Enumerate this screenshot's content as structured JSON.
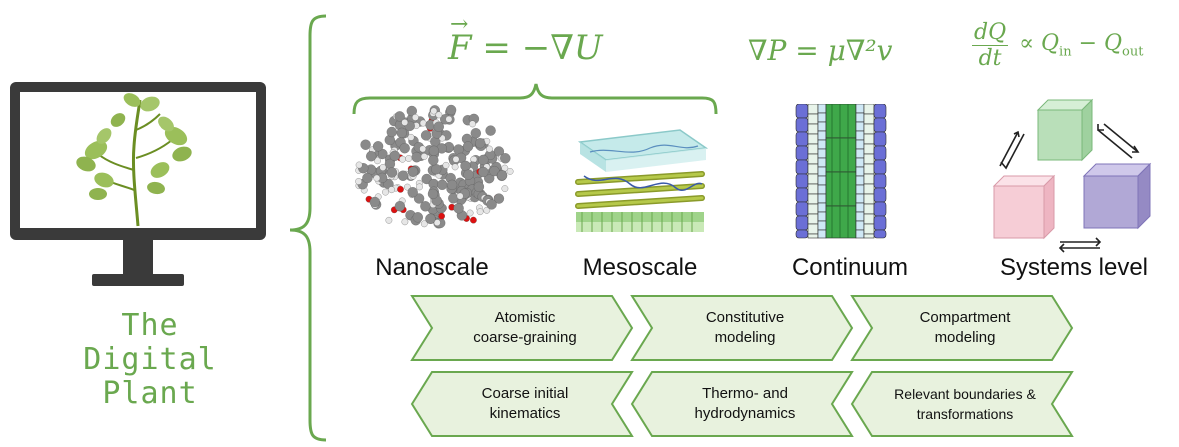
{
  "title": {
    "line1": "The",
    "line2": "Digital",
    "line3": "Plant"
  },
  "equations": {
    "force": {
      "lhs": "F",
      "rhs": "= −∇U"
    },
    "flow": {
      "text": "∇P = μ∇²v"
    },
    "compartment": {
      "num": "dQ",
      "den": "dt",
      "rhs": "∝ Q",
      "sub_in": "in",
      "minus": "− Q",
      "sub_out": "out"
    }
  },
  "scales": {
    "nano": "Nanoscale",
    "meso": "Mesoscale",
    "continuum": "Continuum",
    "systems": "Systems level"
  },
  "forward_arrows": [
    {
      "line1": "Atomistic",
      "line2": "coarse-graining"
    },
    {
      "line1": "Constitutive",
      "line2": "modeling"
    },
    {
      "line1": "Compartment",
      "line2": "modeling"
    }
  ],
  "backward_arrows": [
    {
      "line1": "Coarse initial",
      "line2": "kinematics"
    },
    {
      "line1": "Thermo- and",
      "line2": "hydrodynamics"
    },
    {
      "line1": "Relevant boundaries &",
      "line2": "transformations"
    }
  ],
  "colors": {
    "accent_green": "#6aa84f",
    "arrow_fill": "#e8f2de",
    "cube_green": "#b9dfb9",
    "cube_pink": "#f6cdd6",
    "cube_purple": "#b1a8d6",
    "monitor": "#3a3a3a"
  }
}
